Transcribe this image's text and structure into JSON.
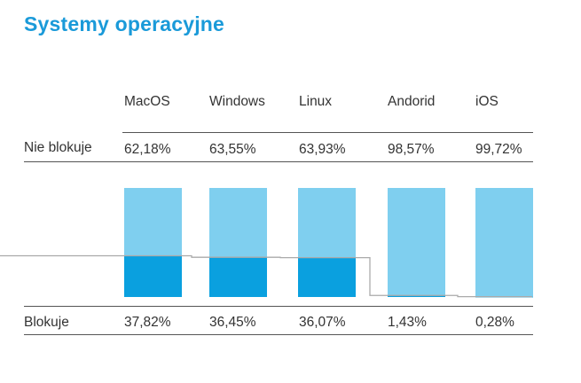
{
  "title": "Systemy operacyjne",
  "chart_data": {
    "type": "bar",
    "stacked": true,
    "categories": [
      "MacOS",
      "Windows",
      "Linux",
      "Andorid",
      "iOS"
    ],
    "series": [
      {
        "name": "Nie blokuje",
        "values": [
          62.18,
          63.55,
          63.93,
          98.57,
          99.72
        ],
        "labels": [
          "62,18%",
          "63,55%",
          "63,93%",
          "98,57%",
          "99,72%"
        ],
        "color": "#7fcfef"
      },
      {
        "name": "Blokuje",
        "values": [
          37.82,
          36.45,
          36.07,
          1.43,
          0.28
        ],
        "labels": [
          "37,82%",
          "36,45%",
          "36,07%",
          "1,43%",
          "0,28%"
        ],
        "color": "#0aa0df"
      }
    ],
    "ylim": [
      0,
      100
    ],
    "row_labels": {
      "top": "Nie blokuje",
      "bottom": "Blokuje"
    }
  }
}
